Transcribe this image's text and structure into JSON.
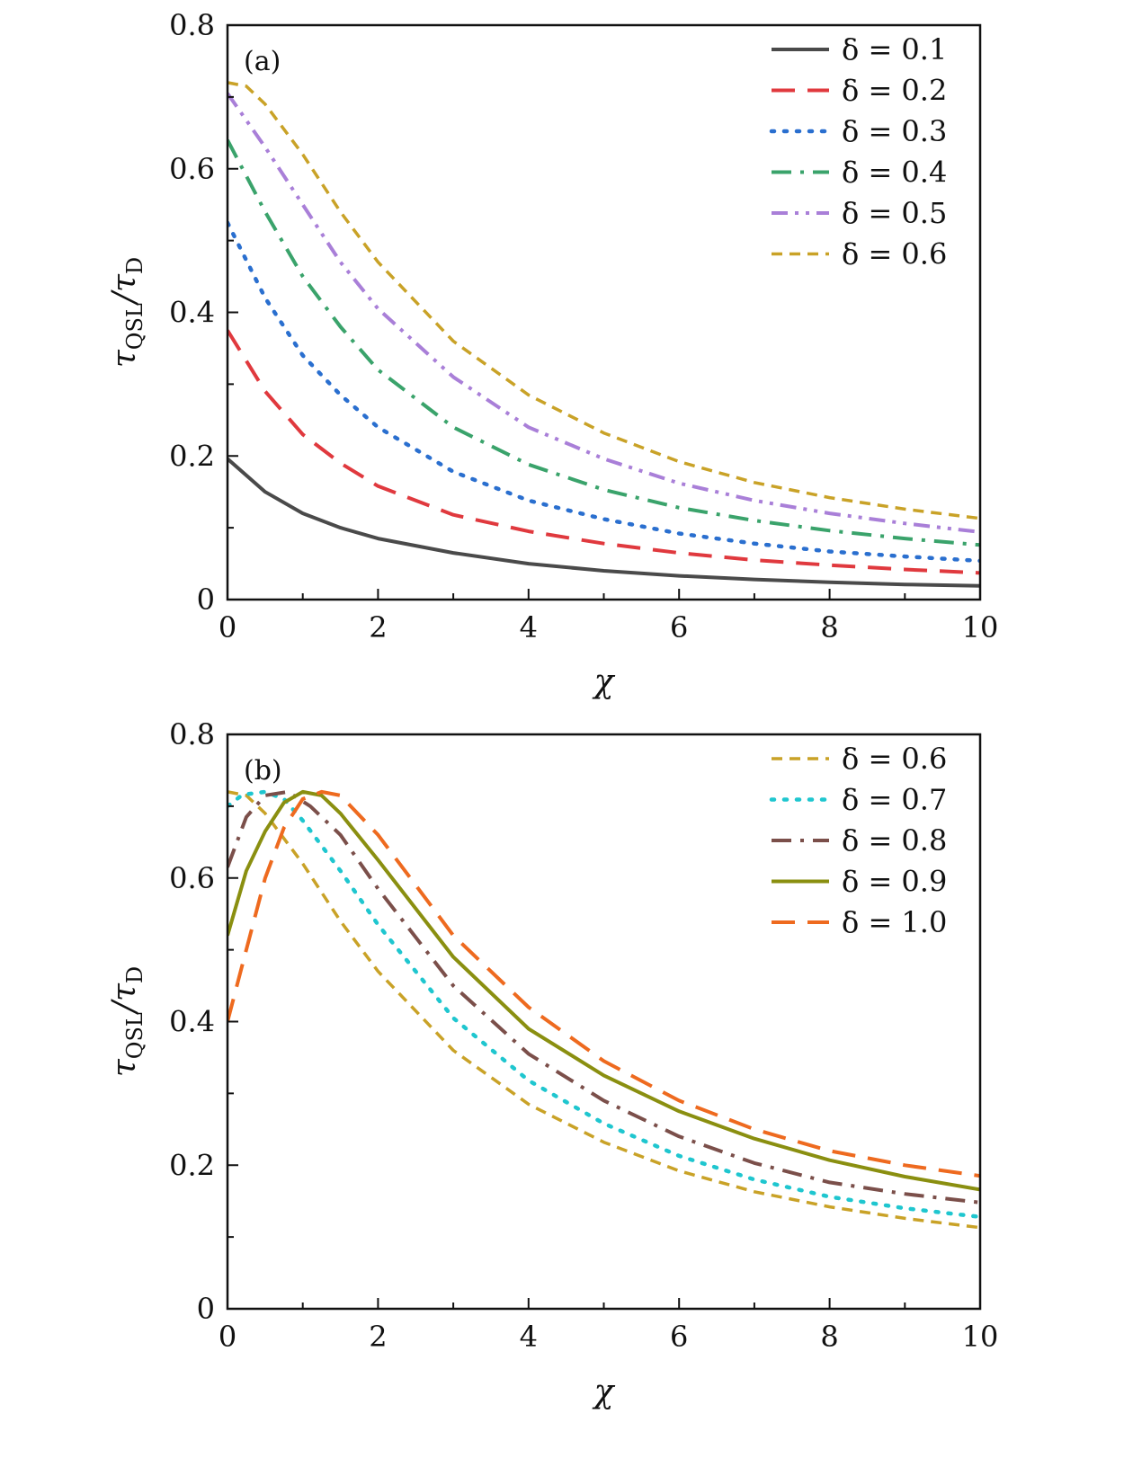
{
  "chart_data": [
    {
      "type": "line",
      "panel_label": "(a)",
      "xlabel": "χ",
      "ylabel": "τQSL/τD",
      "ylabel_main": "τ",
      "ylabel_sub1": "QSL",
      "ylabel_mid": "/τ",
      "ylabel_sub2": "D",
      "xlim": [
        0,
        10
      ],
      "ylim": [
        0,
        0.8
      ],
      "xticks": [
        0,
        2,
        4,
        6,
        8,
        10
      ],
      "xtick_labels": [
        "0",
        "2",
        "4",
        "6",
        "8",
        "10"
      ],
      "yticks": [
        0,
        0.2,
        0.4,
        0.6,
        0.8
      ],
      "ytick_labels": [
        "0",
        "0.2",
        "0.4",
        "0.6",
        "0.8"
      ],
      "legend_position": "top-right",
      "series": [
        {
          "name": "δ = 0.1",
          "color": "#4a4a4a",
          "dash": "solid",
          "x": [
            0,
            0.5,
            1,
            1.5,
            2,
            3,
            4,
            5,
            6,
            7,
            8,
            9,
            10
          ],
          "y": [
            0.196,
            0.15,
            0.12,
            0.1,
            0.085,
            0.065,
            0.05,
            0.04,
            0.033,
            0.028,
            0.024,
            0.021,
            0.019
          ]
        },
        {
          "name": "δ = 0.2",
          "color": "#e0393e",
          "dash": "long-dash",
          "x": [
            0,
            0.5,
            1,
            1.5,
            2,
            3,
            4,
            5,
            6,
            7,
            8,
            9,
            10
          ],
          "y": [
            0.375,
            0.29,
            0.23,
            0.19,
            0.158,
            0.118,
            0.095,
            0.078,
            0.065,
            0.055,
            0.048,
            0.042,
            0.037
          ]
        },
        {
          "name": "δ = 0.3",
          "color": "#2a6fcf",
          "dash": "dotted",
          "x": [
            0,
            0.5,
            1,
            1.5,
            2,
            3,
            4,
            5,
            6,
            7,
            8,
            9,
            10
          ],
          "y": [
            0.525,
            0.42,
            0.34,
            0.285,
            0.24,
            0.178,
            0.138,
            0.112,
            0.092,
            0.078,
            0.067,
            0.06,
            0.054
          ]
        },
        {
          "name": "δ = 0.4",
          "color": "#3aa36b",
          "dash": "dash-dot",
          "x": [
            0,
            0.5,
            1,
            1.5,
            2,
            3,
            4,
            5,
            6,
            7,
            8,
            9,
            10
          ],
          "y": [
            0.64,
            0.54,
            0.45,
            0.38,
            0.32,
            0.24,
            0.188,
            0.153,
            0.128,
            0.11,
            0.096,
            0.085,
            0.076
          ]
        },
        {
          "name": "δ = 0.5",
          "color": "#a97fd8",
          "dash": "dash-dot-dot",
          "x": [
            0,
            0.5,
            1,
            1.5,
            2,
            3,
            4,
            5,
            6,
            7,
            8,
            9,
            10
          ],
          "y": [
            0.705,
            0.63,
            0.55,
            0.47,
            0.405,
            0.31,
            0.24,
            0.196,
            0.162,
            0.138,
            0.12,
            0.106,
            0.094
          ]
        },
        {
          "name": "δ = 0.6",
          "color": "#c9a227",
          "dash": "short-dash",
          "x": [
            0,
            0.25,
            0.5,
            1,
            1.5,
            2,
            3,
            4,
            5,
            6,
            7,
            8,
            9,
            10
          ],
          "y": [
            0.72,
            0.715,
            0.69,
            0.62,
            0.54,
            0.47,
            0.36,
            0.285,
            0.232,
            0.192,
            0.163,
            0.142,
            0.126,
            0.113
          ]
        }
      ]
    },
    {
      "type": "line",
      "panel_label": "(b)",
      "xlabel": "χ",
      "ylabel": "τQSL/τD",
      "ylabel_main": "τ",
      "ylabel_sub1": "QSL",
      "ylabel_mid": "/τ",
      "ylabel_sub2": "D",
      "xlim": [
        0,
        10
      ],
      "ylim": [
        0,
        0.8
      ],
      "xticks": [
        0,
        2,
        4,
        6,
        8,
        10
      ],
      "xtick_labels": [
        "0",
        "2",
        "4",
        "6",
        "8",
        "10"
      ],
      "yticks": [
        0,
        0.2,
        0.4,
        0.6,
        0.8
      ],
      "ytick_labels": [
        "0",
        "0.2",
        "0.4",
        "0.6",
        "0.8"
      ],
      "legend_position": "top-right",
      "series": [
        {
          "name": "δ = 0.6",
          "color": "#c9a227",
          "dash": "short-dash",
          "x": [
            0,
            0.25,
            0.5,
            1,
            1.5,
            2,
            3,
            4,
            5,
            6,
            7,
            8,
            9,
            10
          ],
          "y": [
            0.72,
            0.715,
            0.69,
            0.62,
            0.54,
            0.47,
            0.36,
            0.285,
            0.232,
            0.192,
            0.163,
            0.142,
            0.126,
            0.113
          ]
        },
        {
          "name": "δ = 0.7",
          "color": "#1fc6cf",
          "dash": "dotted",
          "x": [
            0,
            0.2,
            0.5,
            0.75,
            1,
            1.5,
            2,
            3,
            4,
            5,
            6,
            7,
            8,
            9,
            10
          ],
          "y": [
            0.7,
            0.716,
            0.72,
            0.71,
            0.68,
            0.61,
            0.535,
            0.405,
            0.318,
            0.258,
            0.213,
            0.18,
            0.156,
            0.14,
            0.128
          ]
        },
        {
          "name": "δ = 0.8",
          "color": "#7b4f4a",
          "dash": "dash-dot",
          "x": [
            0,
            0.25,
            0.5,
            0.8,
            1.1,
            1.5,
            2,
            3,
            4,
            5,
            6,
            7,
            8,
            9,
            10
          ],
          "y": [
            0.615,
            0.685,
            0.715,
            0.72,
            0.7,
            0.66,
            0.585,
            0.45,
            0.355,
            0.29,
            0.24,
            0.203,
            0.176,
            0.16,
            0.148
          ]
        },
        {
          "name": "δ = 0.9",
          "color": "#8a8f10",
          "dash": "solid",
          "x": [
            0,
            0.25,
            0.5,
            0.75,
            1,
            1.25,
            1.5,
            2,
            3,
            4,
            5,
            6,
            7,
            8,
            9,
            10
          ],
          "y": [
            0.52,
            0.61,
            0.665,
            0.705,
            0.72,
            0.715,
            0.69,
            0.625,
            0.49,
            0.39,
            0.325,
            0.275,
            0.237,
            0.207,
            0.184,
            0.166
          ]
        },
        {
          "name": "δ = 1.0",
          "color": "#ee6a1f",
          "dash": "long-dash",
          "x": [
            0,
            0.25,
            0.5,
            0.75,
            1,
            1.25,
            1.5,
            2,
            2.5,
            3,
            4,
            5,
            6,
            7,
            8,
            9,
            10
          ],
          "y": [
            0.4,
            0.5,
            0.6,
            0.67,
            0.71,
            0.72,
            0.715,
            0.66,
            0.59,
            0.52,
            0.42,
            0.345,
            0.29,
            0.25,
            0.22,
            0.2,
            0.185
          ]
        }
      ]
    }
  ]
}
